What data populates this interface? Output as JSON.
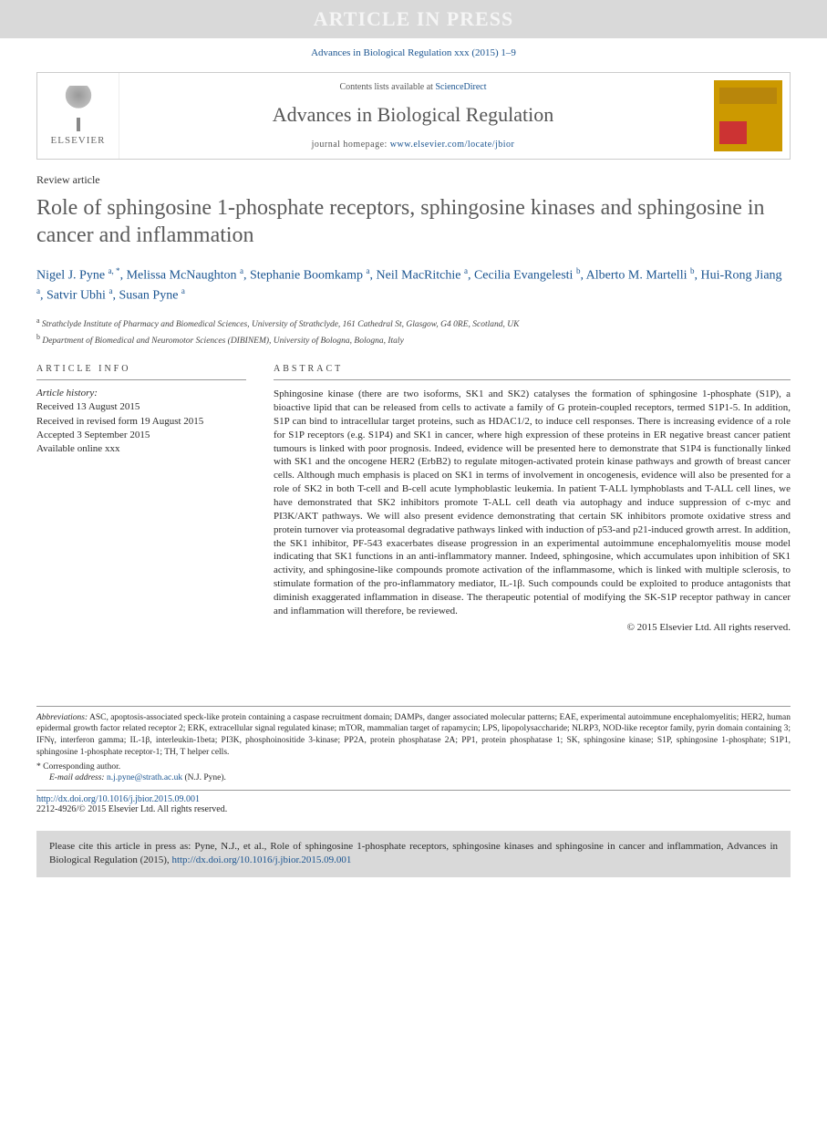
{
  "banner": "ARTICLE IN PRESS",
  "top_citation": "Advances in Biological Regulation xxx (2015) 1–9",
  "header": {
    "contents_prefix": "Contents lists available at ",
    "contents_link": "ScienceDirect",
    "journal_name": "Advances in Biological Regulation",
    "homepage_prefix": "journal homepage: ",
    "homepage_url": "www.elsevier.com/locate/jbior",
    "elsevier": "ELSEVIER"
  },
  "article_type": "Review article",
  "title": "Role of sphingosine 1-phosphate receptors, sphingosine kinases and sphingosine in cancer and inflammation",
  "authors_html": "Nigel J. Pyne <sup>a, *</sup>, Melissa McNaughton <sup>a</sup>, Stephanie Boomkamp <sup>a</sup>, Neil MacRitchie <sup>a</sup>, Cecilia Evangelesti <sup>b</sup>, Alberto M. Martelli <sup>b</sup>, Hui-Rong Jiang <sup>a</sup>, Satvir Ubhi <sup>a</sup>, Susan Pyne <sup>a</sup>",
  "affiliations": {
    "a": "Strathclyde Institute of Pharmacy and Biomedical Sciences, University of Strathclyde, 161 Cathedral St, Glasgow, G4 0RE, Scotland, UK",
    "b": "Department of Biomedical and Neuromotor Sciences (DIBINEM), University of Bologna, Bologna, Italy"
  },
  "info": {
    "header": "ARTICLE INFO",
    "history_label": "Article history:",
    "received": "Received 13 August 2015",
    "revised": "Received in revised form 19 August 2015",
    "accepted": "Accepted 3 September 2015",
    "online": "Available online xxx"
  },
  "abstract": {
    "header": "ABSTRACT",
    "text": "Sphingosine kinase (there are two isoforms, SK1 and SK2) catalyses the formation of sphingosine 1-phosphate (S1P), a bioactive lipid that can be released from cells to activate a family of G protein-coupled receptors, termed S1P1-5. In addition, S1P can bind to intracellular target proteins, such as HDAC1/2, to induce cell responses. There is increasing evidence of a role for S1P receptors (e.g. S1P4) and SK1 in cancer, where high expression of these proteins in ER negative breast cancer patient tumours is linked with poor prognosis. Indeed, evidence will be presented here to demonstrate that S1P4 is functionally linked with SK1 and the oncogene HER2 (ErbB2) to regulate mitogen-activated protein kinase pathways and growth of breast cancer cells. Although much emphasis is placed on SK1 in terms of involvement in oncogenesis, evidence will also be presented for a role of SK2 in both T-cell and B-cell acute lymphoblastic leukemia. In patient T-ALL lymphoblasts and T-ALL cell lines, we have demonstrated that SK2 inhibitors promote T-ALL cell death via autophagy and induce suppression of c-myc and PI3K/AKT pathways. We will also present evidence demonstrating that certain SK inhibitors promote oxidative stress and protein turnover via proteasomal degradative pathways linked with induction of p53-and p21-induced growth arrest. In addition, the SK1 inhibitor, PF-543 exacerbates disease progression in an experimental autoimmune encephalomyelitis mouse model indicating that SK1 functions in an anti-inflammatory manner. Indeed, sphingosine, which accumulates upon inhibition of SK1 activity, and sphingosine-like compounds promote activation of the inflammasome, which is linked with multiple sclerosis, to stimulate formation of the pro-inflammatory mediator, IL-1β. Such compounds could be exploited to produce antagonists that diminish exaggerated inflammation in disease. The therapeutic potential of modifying the SK-S1P receptor pathway in cancer and inflammation will therefore, be reviewed.",
    "copyright": "© 2015 Elsevier Ltd. All rights reserved."
  },
  "footer": {
    "abbrev_label": "Abbreviations:",
    "abbreviations": " ASC, apoptosis-associated speck-like protein containing a caspase recruitment domain; DAMPs, danger associated molecular patterns; EAE, experimental autoimmune encephalomyelitis; HER2, human epidermal growth factor related receptor 2; ERK, extracellular signal regulated kinase; mTOR, mammalian target of rapamycin; LPS, lipopolysaccharide; NLRP3, NOD-like receptor family, pyrin domain containing 3; IFNγ, interferon gamma; IL-1β, interleukin-1beta; PI3K, phosphoinositide 3-kinase; PP2A, protein phosphatase 2A; PP1, protein phosphatase 1; SK, sphingosine kinase; S1P, sphingosine 1-phosphate; S1P1, sphingosine 1-phosphate receptor-1; TH, T helper cells.",
    "corresponding": "* Corresponding author.",
    "email_label": "E-mail address:",
    "email": "n.j.pyne@strath.ac.uk",
    "email_name": " (N.J. Pyne).",
    "doi": "http://dx.doi.org/10.1016/j.jbior.2015.09.001",
    "issn_copyright": "2212-4926/© 2015 Elsevier Ltd. All rights reserved."
  },
  "citation_box": {
    "text": "Please cite this article in press as: Pyne, N.J., et al., Role of sphingosine 1-phosphate receptors, sphingosine kinases and sphingosine in cancer and inflammation, Advances in Biological Regulation (2015), ",
    "url": "http://dx.doi.org/10.1016/j.jbior.2015.09.001"
  }
}
